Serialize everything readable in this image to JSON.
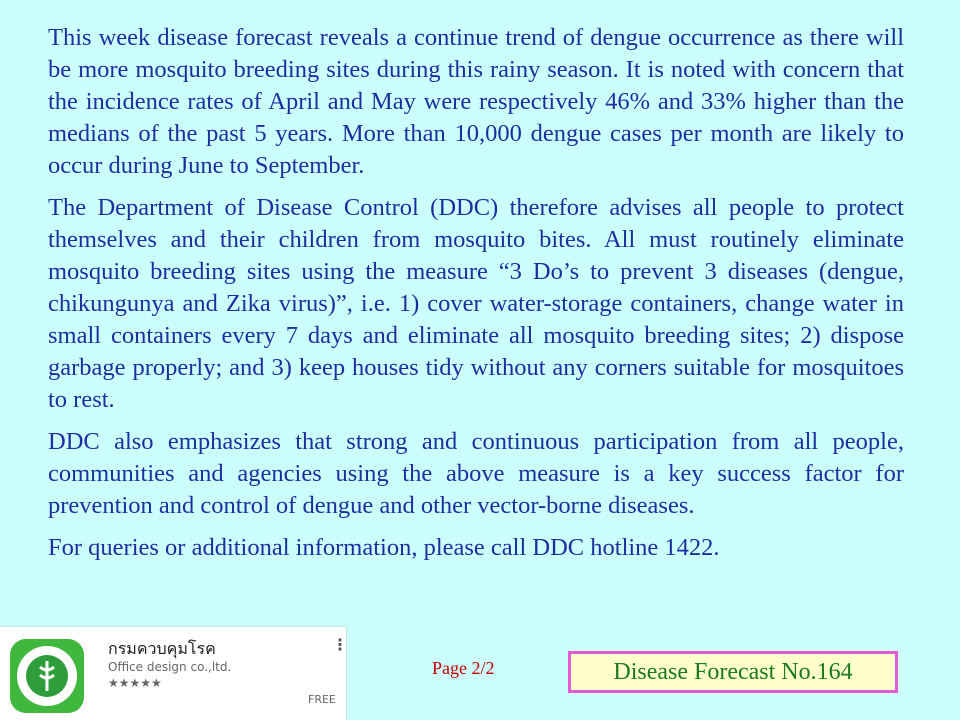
{
  "paragraphs": [
    "This week disease forecast reveals a continue trend of dengue occurrence as there will be more mosquito breeding sites during this rainy season. It is noted with concern that the incidence rates of April and May were respectively 46% and 33% higher than the medians of the past 5 years. More than 10,000 dengue cases per month are likely to occur during June to September.",
    "The Department of Disease Control (DDC) therefore advises all people to protect themselves and their children from mosquito bites. All must routinely eliminate mosquito breeding sites using the measure “3 Do’s to prevent 3 diseases (dengue, chikungunya and Zika virus)”, i.e. 1) cover water-storage containers, change water in small containers every 7 days and eliminate all mosquito breeding sites; 2) dispose garbage properly; and 3) keep houses tidy without any corners suitable for mosquitoes to rest.",
    "DDC also emphasizes that strong and continuous participation from all people, communities and agencies using the above measure is a key success factor for prevention and control of dengue and other vector-borne diseases.",
    "For queries or additional information, please call DDC hotline 1422."
  ],
  "app_banner": {
    "name": "กรมควบคุมโรค",
    "developer": "Office design co.,ltd.",
    "rating": "★★★★★",
    "price": "FREE",
    "menu": "⋮",
    "icon": "ddc-logo-icon",
    "icon_color": "#40b83e"
  },
  "footer": {
    "page": "Page 2/2",
    "forecast_label": "Disease Forecast No.164"
  }
}
